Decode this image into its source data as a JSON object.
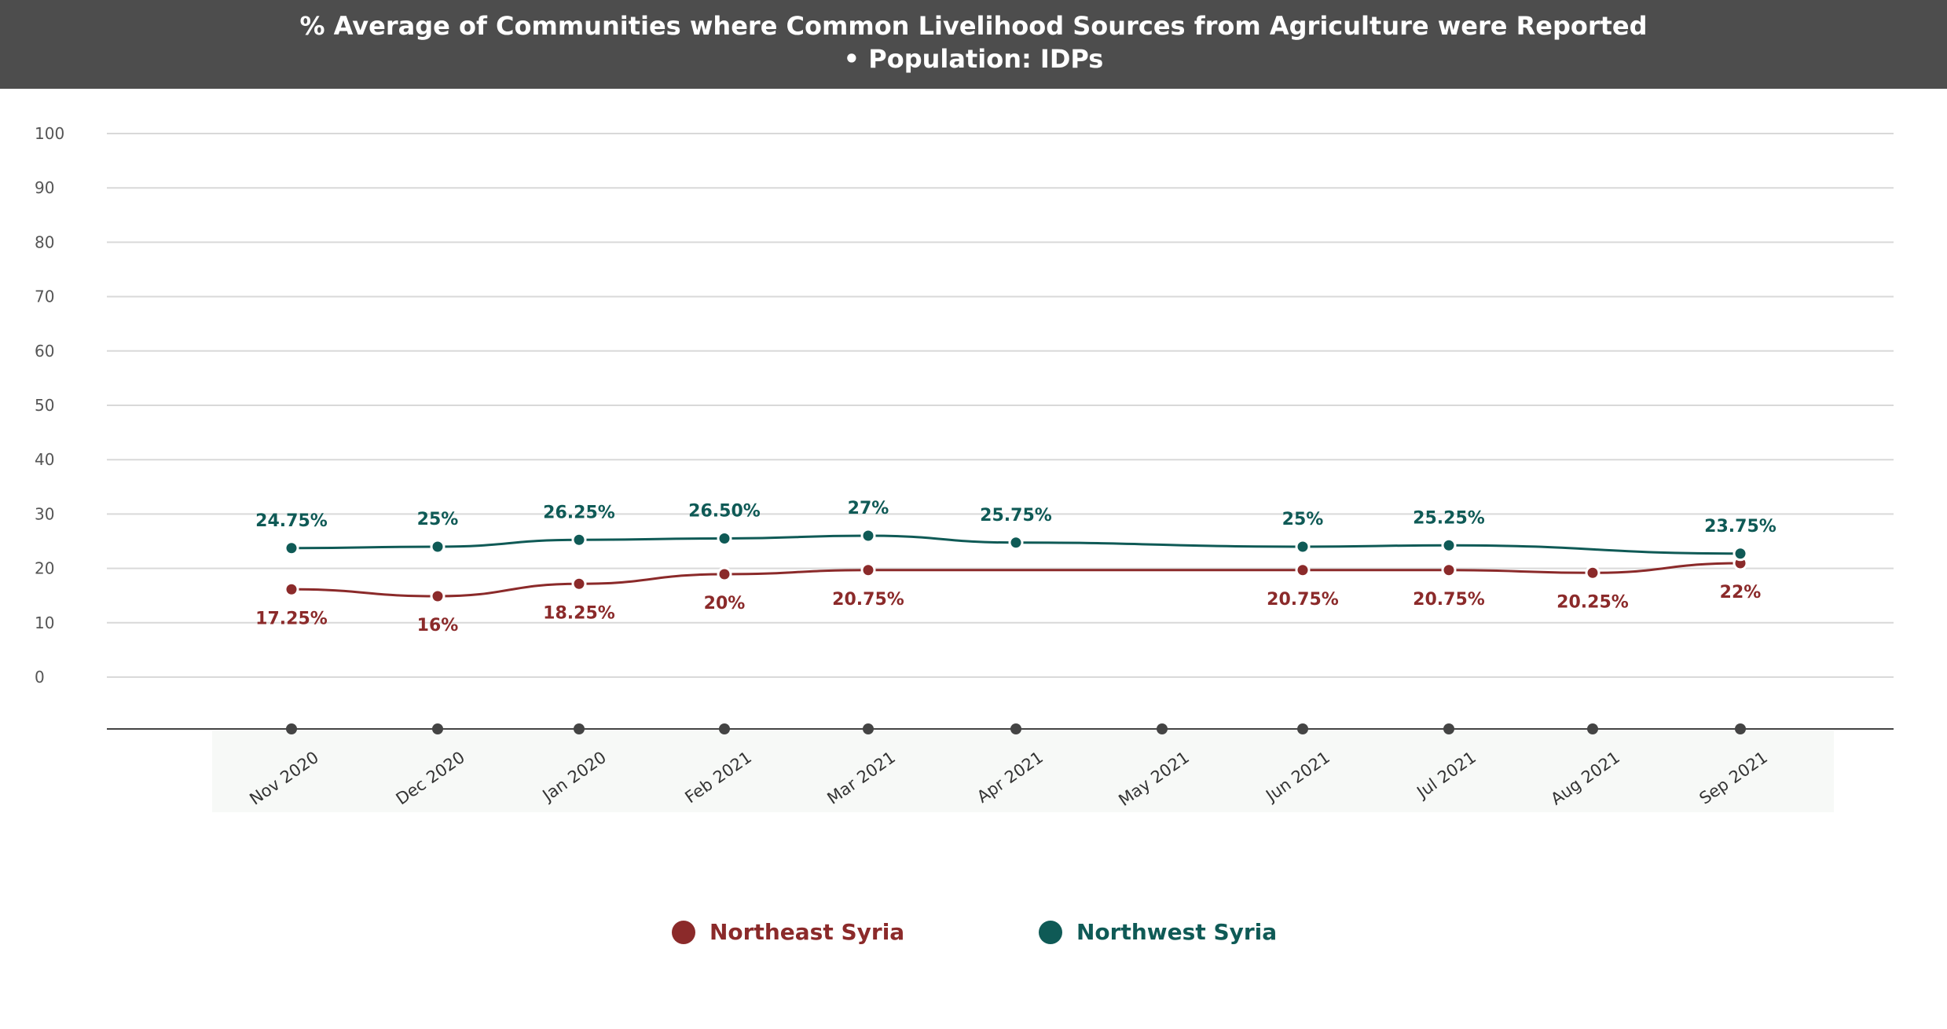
{
  "title": {
    "line1": "% Average of Communities where Common Livelihood Sources from Agriculture were Reported",
    "line2": "• Population: IDPs"
  },
  "colors": {
    "header_bg": "#4d4d4d",
    "northeast": "#8b2a2a",
    "northwest": "#0f5a56",
    "grid": "#d9d9d9",
    "axis": "#444444"
  },
  "chart_data": {
    "type": "line",
    "categories": [
      "Nov 2020",
      "Dec 2020",
      "Jan 2020",
      "Feb 2021",
      "Mar 2021",
      "Apr 2021",
      "May 2021",
      "Jun 2021",
      "Jul 2021",
      "Aug 2021",
      "Sep 2021"
    ],
    "y_ticks": [
      "100",
      "90",
      "80",
      "70",
      "60",
      "50",
      "40",
      "30",
      "20",
      "10",
      "0"
    ],
    "grid": true,
    "legend_position": "bottom",
    "series": [
      {
        "name": "Northeast Syria",
        "color": "#8b2a2a",
        "points": [
          {
            "category": "Nov 2020",
            "value": 17.25,
            "label": "17.25%"
          },
          {
            "category": "Dec 2020",
            "value": 16,
            "label": "16%"
          },
          {
            "category": "Jan 2020",
            "value": 18.25,
            "label": "18.25%"
          },
          {
            "category": "Feb 2021",
            "value": 20,
            "label": "20%"
          },
          {
            "category": "Mar 2021",
            "value": 20.75,
            "label": "20.75%"
          },
          {
            "category": "Jun 2021",
            "value": 20.75,
            "label": "20.75%"
          },
          {
            "category": "Jul 2021",
            "value": 20.75,
            "label": "20.75%"
          },
          {
            "category": "Aug 2021",
            "value": 20.25,
            "label": "20.25%"
          },
          {
            "category": "Sep 2021",
            "value": 22,
            "label": "22%"
          }
        ]
      },
      {
        "name": "Northwest Syria",
        "color": "#0f5a56",
        "points": [
          {
            "category": "Nov 2020",
            "value": 24.75,
            "label": "24.75%"
          },
          {
            "category": "Dec 2020",
            "value": 25,
            "label": "25%"
          },
          {
            "category": "Jan 2020",
            "value": 26.25,
            "label": "26.25%"
          },
          {
            "category": "Feb 2021",
            "value": 26.5,
            "label": "26.50%"
          },
          {
            "category": "Mar 2021",
            "value": 27,
            "label": "27%"
          },
          {
            "category": "Apr 2021",
            "value": 25.75,
            "label": "25.75%"
          },
          {
            "category": "Jun 2021",
            "value": 25,
            "label": "25%"
          },
          {
            "category": "Jul 2021",
            "value": 25.25,
            "label": "25.25%"
          },
          {
            "category": "Sep 2021",
            "value": 23.75,
            "label": "23.75%"
          }
        ]
      }
    ]
  }
}
